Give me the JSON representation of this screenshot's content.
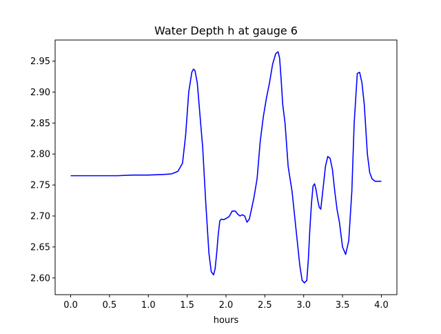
{
  "chart_data": {
    "type": "line",
    "title": "Water Depth h at gauge 6",
    "xlabel": "hours",
    "ylabel": "",
    "xlim": [
      -0.2,
      4.2
    ],
    "ylim": [
      2.573,
      2.984
    ],
    "grid": false,
    "line_color": "#0000ff",
    "xticks": [
      0.0,
      0.5,
      1.0,
      1.5,
      2.0,
      2.5,
      3.0,
      3.5,
      4.0
    ],
    "xtick_labels": [
      "0.0",
      "0.5",
      "1.0",
      "1.5",
      "2.0",
      "2.5",
      "3.0",
      "3.5",
      "4.0"
    ],
    "yticks": [
      2.6,
      2.65,
      2.7,
      2.75,
      2.8,
      2.85,
      2.9,
      2.95
    ],
    "ytick_labels": [
      "2.60",
      "2.65",
      "2.70",
      "2.75",
      "2.80",
      "2.85",
      "2.90",
      "2.95"
    ],
    "series": [
      {
        "x": [
          0.0,
          0.2,
          0.4,
          0.6,
          0.8,
          1.0,
          1.2,
          1.3,
          1.38,
          1.44,
          1.48,
          1.52,
          1.56,
          1.58,
          1.6,
          1.63,
          1.66,
          1.7,
          1.74,
          1.78,
          1.81,
          1.84,
          1.86,
          1.88,
          1.9,
          1.92,
          1.94,
          1.97,
          2.0,
          2.04,
          2.08,
          2.12,
          2.15,
          2.18,
          2.21,
          2.24,
          2.27,
          2.3,
          2.33,
          2.36,
          2.4,
          2.44,
          2.48,
          2.52,
          2.56,
          2.6,
          2.64,
          2.67,
          2.69,
          2.71,
          2.73,
          2.76,
          2.8,
          2.85,
          2.9,
          2.95,
          2.98,
          3.01,
          3.04,
          3.06,
          3.08,
          3.1,
          3.12,
          3.14,
          3.16,
          3.18,
          3.2,
          3.22,
          3.25,
          3.28,
          3.31,
          3.34,
          3.37,
          3.4,
          3.43,
          3.46,
          3.5,
          3.54,
          3.58,
          3.6,
          3.62,
          3.65,
          3.69,
          3.72,
          3.75,
          3.78,
          3.8,
          3.82,
          3.85,
          3.88,
          3.92,
          3.96,
          4.0
        ],
        "y": [
          2.765,
          2.765,
          2.765,
          2.765,
          2.766,
          2.766,
          2.767,
          2.768,
          2.772,
          2.785,
          2.83,
          2.9,
          2.932,
          2.937,
          2.935,
          2.915,
          2.87,
          2.81,
          2.72,
          2.64,
          2.61,
          2.605,
          2.615,
          2.64,
          2.67,
          2.692,
          2.695,
          2.694,
          2.696,
          2.699,
          2.708,
          2.708,
          2.703,
          2.7,
          2.702,
          2.7,
          2.69,
          2.695,
          2.712,
          2.73,
          2.76,
          2.82,
          2.86,
          2.89,
          2.915,
          2.945,
          2.962,
          2.965,
          2.955,
          2.92,
          2.88,
          2.85,
          2.78,
          2.74,
          2.68,
          2.62,
          2.596,
          2.592,
          2.596,
          2.63,
          2.68,
          2.72,
          2.748,
          2.752,
          2.742,
          2.726,
          2.714,
          2.711,
          2.745,
          2.78,
          2.796,
          2.793,
          2.775,
          2.74,
          2.71,
          2.69,
          2.65,
          2.638,
          2.66,
          2.7,
          2.74,
          2.85,
          2.93,
          2.932,
          2.915,
          2.88,
          2.84,
          2.8,
          2.77,
          2.76,
          2.756,
          2.756,
          2.756
        ]
      }
    ]
  }
}
